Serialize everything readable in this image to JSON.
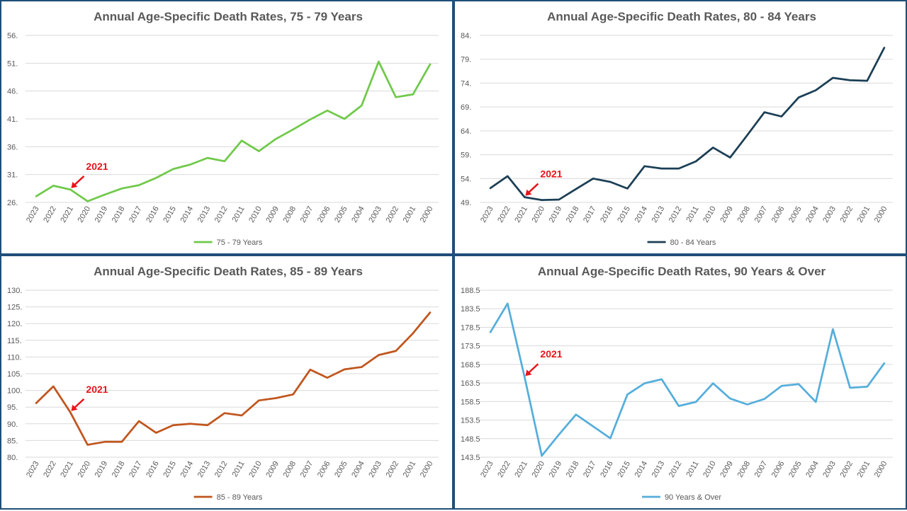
{
  "chart_data": [
    {
      "type": "line",
      "title": "Annual Age-Specific Death Rates, 75 - 79 Years",
      "categories": [
        "2023",
        "2022",
        "2021",
        "2020",
        "2019",
        "2018",
        "2017",
        "2016",
        "2015",
        "2014",
        "2013",
        "2012",
        "2011",
        "2010",
        "2009",
        "2008",
        "2007",
        "2006",
        "2005",
        "2004",
        "2003",
        "2002",
        "2001",
        "2000"
      ],
      "series": [
        {
          "name": "75 - 79 Years",
          "color": "#70c94a",
          "values": [
            27.1,
            29.0,
            28.3,
            26.2,
            27.4,
            28.5,
            29.1,
            30.4,
            32.0,
            32.8,
            34.0,
            33.4,
            37.1,
            35.2,
            37.4,
            39.1,
            40.9,
            42.5,
            41.0,
            43.4,
            51.3,
            44.9,
            45.4,
            50.8
          ]
        }
      ],
      "y_ticks": [
        "56.",
        "51.",
        "46.",
        "41.",
        "36.",
        "31.",
        "26."
      ],
      "ylim": [
        26,
        56
      ],
      "annotation": {
        "text": "2021",
        "category": "2021"
      },
      "legend": "bottom"
    },
    {
      "type": "line",
      "title": "Annual Age-Specific Death Rates, 80 - 84 Years",
      "categories": [
        "2023",
        "2022",
        "2021",
        "2020",
        "2019",
        "2018",
        "2017",
        "2016",
        "2015",
        "2014",
        "2013",
        "2012",
        "2011",
        "2010",
        "2009",
        "2008",
        "2007",
        "2006",
        "2005",
        "2004",
        "2003",
        "2002",
        "2001",
        "2000"
      ],
      "series": [
        {
          "name": "80 - 84 Years",
          "color": "#1b3f55",
          "values": [
            52.0,
            54.5,
            50.1,
            49.5,
            49.6,
            51.8,
            54.0,
            53.3,
            51.9,
            56.6,
            56.1,
            56.1,
            57.6,
            60.5,
            58.4,
            63.1,
            67.9,
            67.0,
            71.0,
            72.5,
            75.1,
            74.6,
            74.5,
            81.4
          ]
        }
      ],
      "y_ticks": [
        "84.",
        "79.",
        "74.",
        "69.",
        "64.",
        "59.",
        "54.",
        "49."
      ],
      "ylim": [
        49,
        84
      ],
      "annotation": {
        "text": "2021",
        "category": "2021"
      },
      "legend": "bottom"
    },
    {
      "type": "line",
      "title": "Annual Age-Specific Death Rates, 85 - 89 Years",
      "categories": [
        "2023",
        "2022",
        "2021",
        "2020",
        "2019",
        "2018",
        "2017",
        "2016",
        "2015",
        "2014",
        "2013",
        "2012",
        "2011",
        "2010",
        "2009",
        "2008",
        "2007",
        "2006",
        "2005",
        "2004",
        "2003",
        "2002",
        "2001",
        "2000"
      ],
      "series": [
        {
          "name": "85 - 89 Years",
          "color": "#c0561e",
          "values": [
            96.2,
            101.2,
            93.4,
            83.7,
            84.6,
            84.6,
            90.8,
            87.3,
            89.6,
            90.0,
            89.6,
            93.2,
            92.5,
            97.0,
            97.7,
            98.8,
            106.2,
            103.8,
            106.3,
            107.0,
            110.6,
            111.8,
            117.1,
            123.3
          ]
        }
      ],
      "y_ticks": [
        "130.",
        "125.",
        "120.",
        "115.",
        "110.",
        "105.",
        "100.",
        "95.",
        "90.",
        "85.",
        "80."
      ],
      "ylim": [
        80,
        130
      ],
      "annotation": {
        "text": "2021",
        "category": "2021"
      },
      "legend": "bottom"
    },
    {
      "type": "line",
      "title": "Annual Age-Specific Death Rates, 90 Years & Over",
      "categories": [
        "2023",
        "2022",
        "2021",
        "2020",
        "2019",
        "2018",
        "2017",
        "2016",
        "2015",
        "2014",
        "2013",
        "2012",
        "2011",
        "2010",
        "2009",
        "2008",
        "2007",
        "2006",
        "2005",
        "2004",
        "2003",
        "2002",
        "2001",
        "2000"
      ],
      "series": [
        {
          "name": "90 Years & Over",
          "color": "#56aedb",
          "values": [
            177.2,
            184.9,
            165.0,
            143.9,
            149.6,
            155.0,
            151.8,
            148.6,
            160.4,
            163.4,
            164.5,
            157.3,
            158.4,
            163.4,
            159.3,
            157.7,
            159.2,
            162.7,
            163.2,
            158.4,
            178.0,
            162.2,
            162.5,
            168.8
          ]
        }
      ],
      "y_ticks": [
        "188.5",
        "183.5",
        "178.5",
        "173.5",
        "168.5",
        "163.5",
        "158.5",
        "153.5",
        "148.5",
        "143.5"
      ],
      "ylim": [
        143.5,
        188.5
      ],
      "annotation": {
        "text": "2021",
        "category": "2021"
      },
      "legend": "bottom"
    }
  ]
}
